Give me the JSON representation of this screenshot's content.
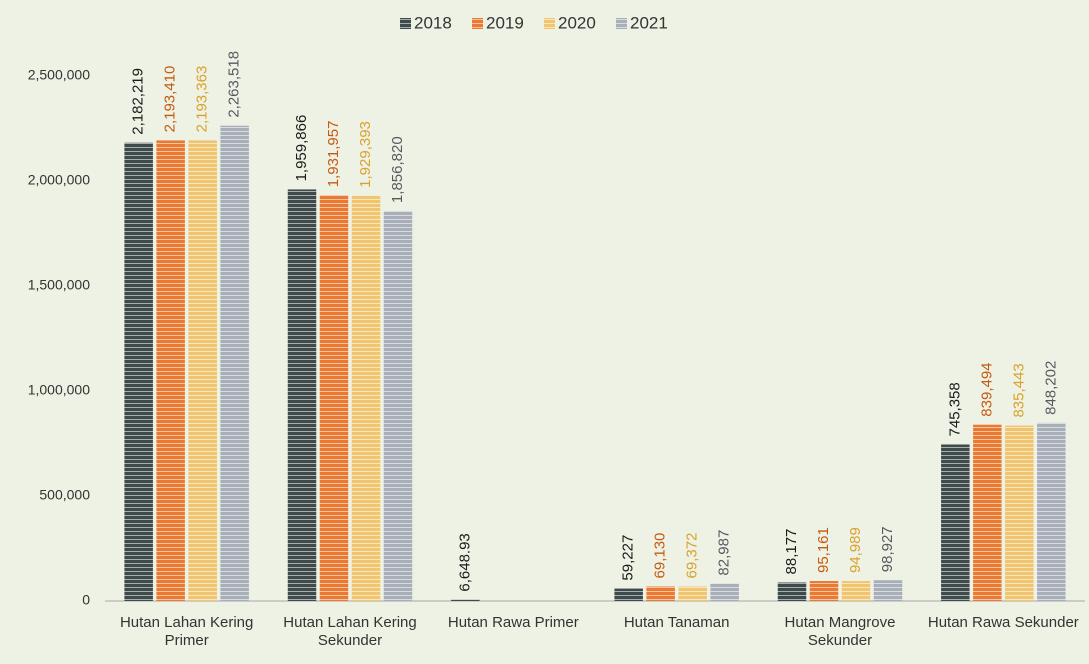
{
  "chart_data": {
    "type": "bar",
    "categories": [
      "Hutan Lahan Kering Primer",
      "Hutan Lahan Kering Sekunder",
      "Hutan Rawa Primer",
      "Hutan Tanaman",
      "Hutan Mangrove Sekunder",
      "Hutan Rawa Sekunder"
    ],
    "series": [
      {
        "name": "2018",
        "color": "#3f4a4b",
        "label_color": "#1a1a1a",
        "values": [
          2182219,
          1959866,
          6648.93,
          59227,
          88177,
          745358
        ],
        "value_labels": [
          "2,182,219",
          "1,959,866",
          "6,648.93",
          "59,227",
          "88,177",
          "745,358"
        ]
      },
      {
        "name": "2019",
        "color": "#ea7a32",
        "label_color": "#c55a11",
        "values": [
          2193410,
          1931957,
          null,
          69130,
          95161,
          839494
        ],
        "value_labels": [
          "2,193,410",
          "1,931,957",
          null,
          "69,130",
          "95,161",
          "839,494"
        ]
      },
      {
        "name": "2020",
        "color": "#f1c56f",
        "label_color": "#d9a22b",
        "values": [
          2193363,
          1929393,
          null,
          69372,
          94989,
          835443
        ],
        "value_labels": [
          "2,193,363",
          "1,929,393",
          null,
          "69,372",
          "94,989",
          "835,443"
        ]
      },
      {
        "name": "2021",
        "color": "#a9afb9",
        "label_color": "#555a60",
        "values": [
          2263518,
          1856820,
          null,
          82987,
          98927,
          848202
        ],
        "value_labels": [
          "2,263,518",
          "1,856,820",
          null,
          "82,987",
          "98,927",
          "848,202"
        ]
      }
    ],
    "ylim": [
      0,
      2500000
    ],
    "yticks": [
      0,
      {
        "value": 500000,
        "label": "500,000"
      },
      {
        "value": 1000000,
        "label": "1,000,000"
      },
      {
        "value": 1500000,
        "label": "1,500,000"
      },
      {
        "value": 2000000,
        "label": "2,000,000"
      },
      {
        "value": 2500000,
        "label": "2,500,000"
      }
    ],
    "grid": false,
    "legend": "top"
  }
}
